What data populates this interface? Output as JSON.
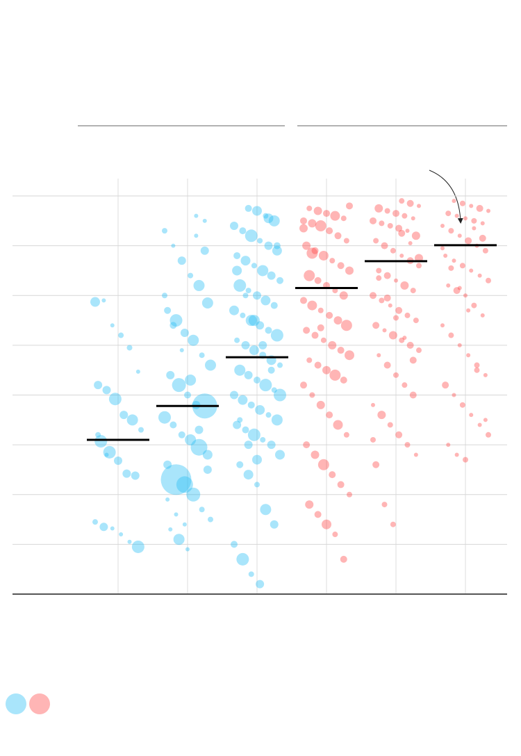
{
  "chart_data": {
    "type": "strip",
    "categories": [
      null,
      null,
      null,
      null,
      null,
      null
    ],
    "ylim": [
      0,
      8
    ],
    "yticks": [
      0,
      1,
      2,
      3,
      4,
      5,
      6,
      7,
      8
    ],
    "grid": true,
    "columns": [
      {
        "color": "#29bff5",
        "median": 3.1,
        "y": [
          5.87,
          5.9,
          5.4,
          5.2,
          4.95,
          4.47,
          4.2,
          4.1,
          3.92,
          3.6,
          3.5,
          3.3,
          3.07,
          2.85,
          2.68,
          2.42,
          2.38,
          1.45,
          1.35,
          1.32,
          1.2,
          1.05,
          0.95,
          3.2,
          2.8
        ],
        "r": [
          7,
          3,
          3,
          4,
          4,
          3,
          6,
          6,
          9,
          6,
          8,
          4,
          9,
          9,
          6,
          6,
          6,
          4,
          6,
          3,
          3,
          3,
          9,
          4,
          3
        ]
      },
      {
        "color": "#29bff5",
        "median": 3.78,
        "y": [
          7.6,
          7.5,
          7.3,
          7.0,
          6.7,
          6.4,
          6.2,
          5.85,
          5.7,
          5.5,
          5.25,
          5.1,
          4.8,
          4.6,
          4.4,
          4.2,
          4.0,
          3.8,
          3.78,
          3.55,
          3.4,
          3.2,
          3.1,
          2.95,
          2.8,
          2.6,
          2.3,
          2.2,
          2.0,
          1.7,
          1.5,
          1.3,
          1.1,
          0.9,
          7.2,
          6.9,
          6.0,
          5.4,
          4.9,
          4.3,
          3.3,
          2.5,
          1.9,
          1.6,
          1.4
        ],
        "r": [
          3,
          3,
          4,
          3,
          6,
          4,
          8,
          8,
          5,
          9,
          6,
          8,
          4,
          8,
          6,
          10,
          5,
          6,
          18,
          9,
          5,
          5,
          8,
          12,
          7,
          6,
          22,
          12,
          10,
          4,
          4,
          3,
          8,
          3,
          3,
          6,
          4,
          5,
          3,
          8,
          6,
          6,
          3,
          3,
          3
        ]
      },
      {
        "color": "#29bff5",
        "median": 4.76,
        "y": [
          7.75,
          7.7,
          7.6,
          7.5,
          7.4,
          7.3,
          7.2,
          7.1,
          7.0,
          6.9,
          6.8,
          6.7,
          6.6,
          6.5,
          6.4,
          6.3,
          6.2,
          6.1,
          6.0,
          5.9,
          5.8,
          5.7,
          5.6,
          5.5,
          5.4,
          5.3,
          5.2,
          5.1,
          5.0,
          4.9,
          4.8,
          4.7,
          4.6,
          4.5,
          4.4,
          4.3,
          4.2,
          4.1,
          4.0,
          3.9,
          3.8,
          3.7,
          3.6,
          3.5,
          3.4,
          3.3,
          3.2,
          3.1,
          3.0,
          2.8,
          2.6,
          2.4,
          2.2,
          1.7,
          1.4,
          1.0,
          0.7,
          0.4,
          0.2,
          7.55,
          7.0,
          6.5,
          6.0,
          5.5,
          5.0,
          4.5,
          4.0,
          3.5,
          3.0,
          2.7
        ],
        "r": [
          5,
          7,
          4,
          8,
          6,
          5,
          9,
          4,
          6,
          7,
          5,
          7,
          4,
          8,
          6,
          5,
          9,
          4,
          6,
          7,
          5,
          7,
          4,
          8,
          6,
          5,
          9,
          4,
          6,
          7,
          5,
          7,
          4,
          8,
          6,
          5,
          9,
          4,
          6,
          7,
          5,
          7,
          4,
          8,
          6,
          5,
          9,
          4,
          6,
          7,
          5,
          7,
          4,
          8,
          6,
          5,
          9,
          4,
          6,
          7,
          5,
          7,
          4,
          8,
          6,
          5,
          9,
          4,
          6,
          7
        ]
      },
      {
        "color": "#ff4545",
        "median": 6.15,
        "y": [
          7.8,
          7.75,
          7.7,
          7.65,
          7.6,
          7.55,
          7.5,
          7.45,
          7.4,
          7.3,
          7.2,
          7.1,
          7.0,
          6.9,
          6.8,
          6.7,
          6.6,
          6.5,
          6.4,
          6.3,
          6.2,
          6.1,
          6.0,
          5.9,
          5.8,
          5.7,
          5.6,
          5.5,
          5.4,
          5.3,
          5.2,
          5.1,
          5.0,
          4.9,
          4.8,
          4.7,
          4.6,
          4.5,
          4.4,
          4.3,
          4.2,
          4.0,
          3.8,
          3.6,
          3.4,
          3.2,
          3.0,
          2.8,
          2.6,
          2.4,
          2.2,
          2.0,
          1.8,
          1.6,
          1.4,
          1.2,
          0.7,
          7.35,
          6.85,
          5.35
        ],
        "r": [
          5,
          4,
          6,
          5,
          7,
          4,
          5,
          6,
          8,
          5,
          5,
          4,
          6,
          5,
          7,
          4,
          5,
          6,
          8,
          5,
          5,
          4,
          6,
          5,
          7,
          4,
          5,
          6,
          8,
          5,
          5,
          4,
          6,
          5,
          7,
          4,
          5,
          6,
          8,
          5,
          5,
          4,
          6,
          5,
          7,
          4,
          5,
          6,
          8,
          5,
          5,
          4,
          6,
          5,
          7,
          4,
          5,
          6,
          8,
          5
        ]
      },
      {
        "color": "#ff4545",
        "median": 6.69,
        "y": [
          7.9,
          7.85,
          7.8,
          7.75,
          7.7,
          7.65,
          7.6,
          7.55,
          7.5,
          7.45,
          7.4,
          7.35,
          7.3,
          7.2,
          7.1,
          7.0,
          6.9,
          6.8,
          6.7,
          6.6,
          6.5,
          6.4,
          6.3,
          6.2,
          6.1,
          6.0,
          5.9,
          5.8,
          5.7,
          5.6,
          5.5,
          5.4,
          5.3,
          5.2,
          5.1,
          5.0,
          4.9,
          4.8,
          4.6,
          4.4,
          4.2,
          4.0,
          3.8,
          3.6,
          3.4,
          3.2,
          3.0,
          2.8,
          2.6,
          1.8,
          1.4,
          7.25,
          7.05,
          6.75,
          6.35,
          5.95,
          5.55,
          5.15,
          4.7,
          3.1
        ],
        "r": [
          4,
          5,
          3,
          6,
          4,
          5,
          4,
          3,
          5,
          4,
          4,
          5,
          3,
          6,
          4,
          5,
          4,
          3,
          5,
          4,
          4,
          5,
          3,
          6,
          4,
          5,
          4,
          3,
          5,
          4,
          4,
          5,
          3,
          6,
          4,
          5,
          4,
          3,
          5,
          4,
          4,
          5,
          3,
          6,
          4,
          5,
          4,
          3,
          5,
          4,
          4,
          5,
          3,
          6,
          4,
          5,
          4,
          3,
          5,
          4
        ]
      },
      {
        "color": "#ff4545",
        "median": 7.01,
        "y": [
          7.9,
          7.85,
          7.8,
          7.75,
          7.7,
          7.65,
          7.6,
          7.55,
          7.5,
          7.45,
          7.4,
          7.3,
          7.2,
          7.1,
          7.0,
          6.9,
          6.8,
          6.7,
          6.6,
          6.5,
          6.4,
          6.3,
          6.2,
          6.1,
          6.0,
          5.8,
          5.6,
          5.4,
          5.2,
          5.0,
          4.8,
          4.6,
          4.4,
          4.2,
          4.0,
          3.8,
          3.6,
          3.4,
          3.2,
          3.0,
          2.8,
          2.7,
          7.35,
          7.15,
          6.95,
          6.55,
          6.15,
          5.7,
          4.5,
          3.5
        ],
        "r": [
          3,
          4,
          3,
          5,
          3,
          4,
          3,
          3,
          4,
          3,
          3,
          4,
          3,
          5,
          3,
          4,
          3,
          3,
          4,
          3,
          3,
          4,
          3,
          5,
          3,
          4,
          3,
          3,
          4,
          3,
          3,
          4,
          3,
          5,
          3,
          4,
          3,
          3,
          4,
          3,
          3,
          4,
          3,
          5,
          3,
          4,
          3,
          3,
          4,
          3
        ]
      }
    ]
  }
}
